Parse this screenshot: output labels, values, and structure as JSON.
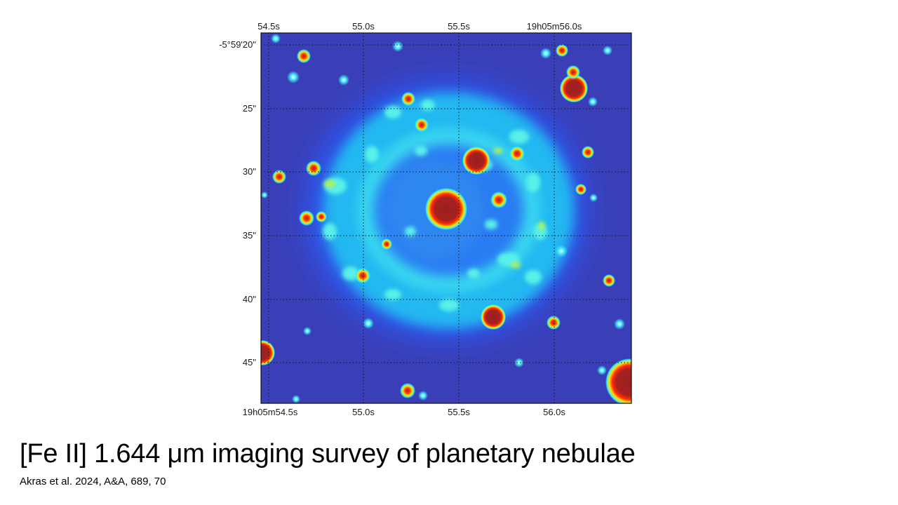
{
  "slide": {
    "title": "[Fe II] 1.644 μm imaging survey of planetary nebulae",
    "citation": "Akras et al. 2024, A&A, 689, 70"
  },
  "image": {
    "colormap": "jet",
    "colors": {
      "background": "#3a3fb8",
      "low": "#2a55f0",
      "mid": "#22c8f0",
      "high": "#c8f040",
      "peak": "#9a1f1f",
      "grid": "#1a1a1a"
    },
    "ra_top_labels": [
      "54.5s",
      "55.0s",
      "55.5s",
      "19h05m56.0s"
    ],
    "ra_bottom_labels": [
      "19h05m54.5s",
      "55.0s",
      "55.5s",
      "56.0s"
    ],
    "dec_labels": [
      "-5°59'20\"",
      "25\"",
      "30\"",
      "35\"",
      "40\"",
      "45\""
    ]
  }
}
